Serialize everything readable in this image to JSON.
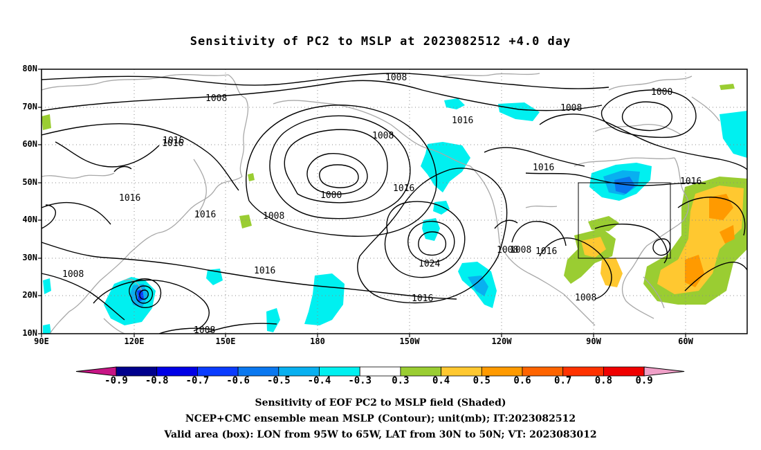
{
  "title": "Sensitivity of PC2 to MSLP at 2023082512 +4.0 day",
  "map": {
    "lat_labels": [
      "80N",
      "70N",
      "60N",
      "50N",
      "40N",
      "30N",
      "20N",
      "10N"
    ],
    "lon_labels": [
      "90E",
      "120E",
      "150E",
      "180",
      "150W",
      "120W",
      "90W",
      "60W"
    ],
    "contour_labels": [
      "1008",
      "1008",
      "1008",
      "1000",
      "1008",
      "1016",
      "1016",
      "1016",
      "1016",
      "1016",
      "1008",
      "1000",
      "1008",
      "1016",
      "1016",
      "1008",
      "1016",
      "1024",
      "1016",
      "1008",
      "1016",
      "1016",
      "1008",
      "1008"
    ],
    "valid_box": {
      "lon_from": "95W",
      "lon_to": "65W",
      "lat_from": "30N",
      "lat_to": "50N"
    }
  },
  "colorbar": {
    "labels": [
      "-0.9",
      "-0.8",
      "-0.7",
      "-0.6",
      "-0.5",
      "-0.4",
      "-0.3",
      "0.3",
      "0.4",
      "0.5",
      "0.6",
      "0.7",
      "0.8",
      "0.9"
    ],
    "colors": [
      "#00008c",
      "#0000e6",
      "#0a3cff",
      "#0a78f0",
      "#08b0f0",
      "#00f0f0",
      "#ffffff",
      "#9acd32",
      "#ffc830",
      "#ff9a00",
      "#ff6400",
      "#ff3200",
      "#f00000"
    ],
    "low_cap_color": "#c71585",
    "high_cap_color": "#f0a0c8"
  },
  "footer": {
    "line1": "Sensitivity of EOF PC2 to MSLP field (Shaded)",
    "line2": "NCEP+CMC ensemble mean MSLP (Contour); unit(mb); IT:2023082512",
    "line3": "Valid area (box): LON from 95W to 65W, LAT from 30N to 50N; VT: 2023083012"
  }
}
